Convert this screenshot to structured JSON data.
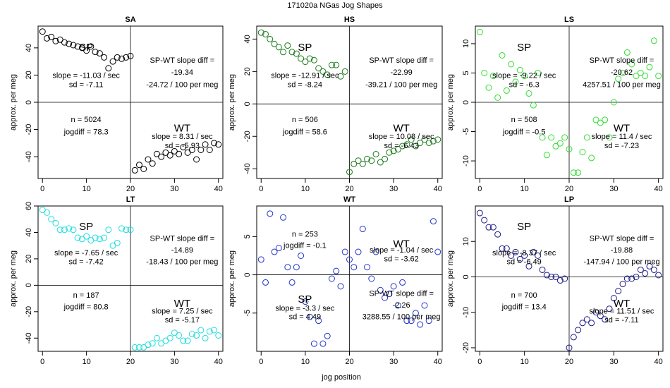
{
  "figure": {
    "title": "171020a   NGas Jog Shapes",
    "xlabel": "jog position",
    "ylabel": "approx. per meg"
  },
  "chart_data": [
    {
      "type": "scatter",
      "title": "SA",
      "color": "#000000",
      "xlim": [
        -1,
        41
      ],
      "ylim": [
        -56,
        56
      ],
      "xticks": [
        0,
        10,
        20,
        30,
        40
      ],
      "yticks": [
        -40,
        -20,
        0,
        20,
        40
      ],
      "split_x": 20,
      "split_y": 0,
      "points": [
        [
          0,
          52
        ],
        [
          1,
          47
        ],
        [
          2,
          48
        ],
        [
          3,
          45
        ],
        [
          4,
          46
        ],
        [
          5,
          44
        ],
        [
          6,
          43
        ],
        [
          7,
          42
        ],
        [
          8,
          41
        ],
        [
          9,
          40
        ],
        [
          10,
          38
        ],
        [
          11,
          41
        ],
        [
          12,
          37
        ],
        [
          13,
          36
        ],
        [
          14,
          33
        ],
        [
          15,
          25
        ],
        [
          16,
          30
        ],
        [
          17,
          33
        ],
        [
          18,
          32
        ],
        [
          19,
          33
        ],
        [
          20,
          34
        ],
        [
          21,
          -50
        ],
        [
          22,
          -46
        ],
        [
          23,
          -49
        ],
        [
          24,
          -42
        ],
        [
          25,
          -45
        ],
        [
          26,
          -38
        ],
        [
          27,
          -40
        ],
        [
          28,
          -37
        ],
        [
          29,
          -39
        ],
        [
          30,
          -36
        ],
        [
          31,
          -38
        ],
        [
          32,
          -33
        ],
        [
          33,
          -37
        ],
        [
          34,
          -35
        ],
        [
          35,
          -42
        ],
        [
          36,
          -35
        ],
        [
          37,
          -31
        ],
        [
          38,
          -35
        ],
        [
          39,
          -30
        ],
        [
          40,
          -31
        ]
      ],
      "annotations": {
        "sp_label": "SP",
        "sp_slope": "slope = -11.03 / sec",
        "sp_sd": "sd = -7.11",
        "wt_label": "WT",
        "wt_slope": "slope = 8.31 / sec",
        "wt_sd": "sd = -5.93",
        "diff_title": "SP-WT slope diff =",
        "diff_value": "-19.34",
        "diff_per": "-24.72 / 100 per meg",
        "n": "n = 5024",
        "jogdiff": "jogdiff = 78.3"
      }
    },
    {
      "type": "scatter",
      "title": "HS",
      "color": "#1a7a1a",
      "xlim": [
        -1,
        41
      ],
      "ylim": [
        -46,
        48
      ],
      "xticks": [
        0,
        10,
        20,
        30,
        40
      ],
      "yticks": [
        -40,
        -20,
        0,
        20,
        40
      ],
      "split_x": 20,
      "split_y": 0,
      "points": [
        [
          0,
          44
        ],
        [
          1,
          43
        ],
        [
          2,
          40
        ],
        [
          3,
          37
        ],
        [
          4,
          35
        ],
        [
          5,
          32
        ],
        [
          6,
          36
        ],
        [
          7,
          32
        ],
        [
          8,
          31
        ],
        [
          9,
          28
        ],
        [
          10,
          26
        ],
        [
          11,
          28
        ],
        [
          12,
          27
        ],
        [
          13,
          22
        ],
        [
          14,
          20
        ],
        [
          15,
          18
        ],
        [
          16,
          24
        ],
        [
          17,
          24
        ],
        [
          18,
          17
        ],
        [
          19,
          20
        ],
        [
          20,
          -42
        ],
        [
          21,
          -37
        ],
        [
          22,
          -35
        ],
        [
          23,
          -37
        ],
        [
          24,
          -34
        ],
        [
          25,
          -35
        ],
        [
          26,
          -31
        ],
        [
          27,
          -36
        ],
        [
          28,
          -34
        ],
        [
          29,
          -30
        ],
        [
          30,
          -29
        ],
        [
          31,
          -28
        ],
        [
          32,
          -26
        ],
        [
          33,
          -25
        ],
        [
          34,
          -22
        ],
        [
          35,
          -26
        ],
        [
          36,
          -24
        ],
        [
          37,
          -22
        ],
        [
          38,
          -24
        ],
        [
          39,
          -23
        ],
        [
          40,
          -22
        ]
      ],
      "annotations": {
        "sp_label": "SP",
        "sp_slope": "slope = -12.91 / sec",
        "sp_sd": "sd = -8.24",
        "wt_label": "WT",
        "wt_slope": "slope = 10.08 / sec",
        "wt_sd": "sd = -6.43",
        "diff_title": "SP-WT slope diff =",
        "diff_value": "-22.99",
        "diff_per": "-39.21 / 100 per meg",
        "n": "n = 506",
        "jogdiff": "jogdiff = 58.6"
      }
    },
    {
      "type": "scatter",
      "title": "LS",
      "color": "#33dd33",
      "xlim": [
        -1,
        41
      ],
      "ylim": [
        -13,
        13
      ],
      "xticks": [
        0,
        10,
        20,
        30,
        40
      ],
      "yticks": [
        -10,
        -5,
        0,
        5,
        10
      ],
      "split_x": 20,
      "split_y": 0,
      "points": [
        [
          0,
          12
        ],
        [
          1,
          5
        ],
        [
          2,
          2.5
        ],
        [
          3,
          4.5
        ],
        [
          4,
          0.8
        ],
        [
          5,
          8
        ],
        [
          6,
          2
        ],
        [
          7,
          6.5
        ],
        [
          8,
          3.5
        ],
        [
          9,
          5.5
        ],
        [
          10,
          4.5
        ],
        [
          11,
          1.5
        ],
        [
          12,
          -0.5
        ],
        [
          13,
          5
        ],
        [
          14,
          -6
        ],
        [
          15,
          -9
        ],
        [
          16,
          -6
        ],
        [
          17,
          -7.5
        ],
        [
          18,
          -7
        ],
        [
          19,
          -6
        ],
        [
          20,
          -8
        ],
        [
          21,
          -12
        ],
        [
          22,
          -12
        ],
        [
          23,
          -8.5
        ],
        [
          24,
          -6
        ],
        [
          25,
          -9.5
        ],
        [
          26,
          -3
        ],
        [
          27,
          -3.5
        ],
        [
          28,
          -3
        ],
        [
          29,
          -6
        ],
        [
          30,
          0
        ],
        [
          31,
          4
        ],
        [
          32,
          5
        ],
        [
          33,
          8.5
        ],
        [
          34,
          6.5
        ],
        [
          35,
          4.5
        ],
        [
          36,
          5
        ],
        [
          37,
          4.5
        ],
        [
          38,
          6
        ],
        [
          39,
          10.5
        ],
        [
          40,
          4.5
        ]
      ],
      "annotations": {
        "sp_label": "SP",
        "sp_slope": "slope = -9.22 / sec",
        "sp_sd": "sd = -6.3",
        "wt_label": "WT",
        "wt_slope": "slope = 11.4 / sec",
        "wt_sd": "sd = -7.23",
        "diff_title": "SP-WT slope diff =",
        "diff_value": "-20.62",
        "diff_per": "4257.51 / 100 per meg",
        "n": "n = 508",
        "jogdiff": "jogdiff = -0.5"
      }
    },
    {
      "type": "scatter",
      "title": "LT",
      "color": "#22dddd",
      "xlim": [
        -1,
        41
      ],
      "ylim": [
        -50,
        60
      ],
      "xticks": [
        0,
        10,
        20,
        30,
        40
      ],
      "yticks": [
        -40,
        -20,
        0,
        20,
        40,
        60
      ],
      "split_x": 20,
      "split_y": 0,
      "points": [
        [
          0,
          57
        ],
        [
          1,
          55
        ],
        [
          2,
          50
        ],
        [
          3,
          47
        ],
        [
          4,
          42
        ],
        [
          5,
          42
        ],
        [
          6,
          43
        ],
        [
          7,
          42
        ],
        [
          8,
          36
        ],
        [
          9,
          35
        ],
        [
          10,
          37
        ],
        [
          11,
          34
        ],
        [
          12,
          36
        ],
        [
          13,
          35
        ],
        [
          14,
          36
        ],
        [
          15,
          42
        ],
        [
          16,
          30
        ],
        [
          17,
          32
        ],
        [
          18,
          43
        ],
        [
          19,
          42
        ],
        [
          20,
          42
        ],
        [
          21,
          -47
        ],
        [
          22,
          -47
        ],
        [
          23,
          -47
        ],
        [
          24,
          -45
        ],
        [
          25,
          -44
        ],
        [
          26,
          -40
        ],
        [
          27,
          -44
        ],
        [
          28,
          -42
        ],
        [
          29,
          -40
        ],
        [
          30,
          -36
        ],
        [
          31,
          -38
        ],
        [
          32,
          -42
        ],
        [
          33,
          -42
        ],
        [
          34,
          -37
        ],
        [
          35,
          -38
        ],
        [
          36,
          -34
        ],
        [
          37,
          -40
        ],
        [
          38,
          -35
        ],
        [
          39,
          -34
        ],
        [
          40,
          -38
        ]
      ],
      "annotations": {
        "sp_label": "SP",
        "sp_slope": "slope = -7.65 / sec",
        "sp_sd": "sd = -7.42",
        "wt_label": "WT",
        "wt_slope": "slope = 7.25 / sec",
        "wt_sd": "sd = -5.17",
        "diff_title": "SP-WT slope diff =",
        "diff_value": "-14.89",
        "diff_per": "-18.43 / 100 per meg",
        "n": "n = 187",
        "jogdiff": "jogdiff = 80.8"
      }
    },
    {
      "type": "scatter",
      "title": "WT",
      "color": "#2233cc",
      "xlim": [
        -1,
        41
      ],
      "ylim": [
        -10,
        9
      ],
      "xticks": [
        0,
        10,
        20,
        30,
        40
      ],
      "yticks": [
        -5,
        0,
        5
      ],
      "split_x": 20,
      "split_y": 0,
      "points": [
        [
          0,
          2
        ],
        [
          1,
          -1
        ],
        [
          2,
          8
        ],
        [
          3,
          3
        ],
        [
          4,
          3.5
        ],
        [
          5,
          7.5
        ],
        [
          6,
          1
        ],
        [
          7,
          -1
        ],
        [
          8,
          1
        ],
        [
          9,
          2.5
        ],
        [
          10,
          -3.5
        ],
        [
          11,
          -5.5
        ],
        [
          12,
          -9
        ],
        [
          13,
          -6
        ],
        [
          14,
          -9
        ],
        [
          15,
          -8
        ],
        [
          16,
          -0.5
        ],
        [
          17,
          0.5
        ],
        [
          18,
          -1.5
        ],
        [
          19,
          3
        ],
        [
          20,
          2
        ],
        [
          21,
          1
        ],
        [
          22,
          3
        ],
        [
          23,
          6
        ],
        [
          24,
          1
        ],
        [
          25,
          -0.5
        ],
        [
          26,
          3
        ],
        [
          27,
          -2
        ],
        [
          28,
          -3
        ],
        [
          29,
          -2.5
        ],
        [
          30,
          -1.5
        ],
        [
          31,
          -4
        ],
        [
          32,
          -1
        ],
        [
          33,
          -6
        ],
        [
          34,
          -6
        ],
        [
          35,
          -5
        ],
        [
          36,
          -6.5
        ],
        [
          37,
          -4
        ],
        [
          38,
          -6
        ],
        [
          39,
          7
        ],
        [
          40,
          3
        ]
      ],
      "annotations": {
        "sp_label": "SP",
        "sp_slope": "slope = -3.3 / sec",
        "sp_sd": "sd = 4.49",
        "wt_label": "WT",
        "wt_slope": "slope = -1.04 / sec",
        "wt_sd": "sd = -3.62",
        "diff_title": "SP-WT slope diff =",
        "diff_value": "-2.26",
        "diff_per": "3288.55 / 100 per meg",
        "n": "n = 253",
        "jogdiff": "jogdiff = -0.1"
      }
    },
    {
      "type": "scatter",
      "title": "LP",
      "color": "#1a1a8a",
      "xlim": [
        -1,
        41
      ],
      "ylim": [
        -21,
        20
      ],
      "xticks": [
        0,
        10,
        20,
        30,
        40
      ],
      "yticks": [
        -20,
        -10,
        0,
        10
      ],
      "split_x": 20,
      "split_y": 0,
      "points": [
        [
          0,
          18
        ],
        [
          1,
          16
        ],
        [
          2,
          14
        ],
        [
          3,
          14
        ],
        [
          4,
          12
        ],
        [
          5,
          8
        ],
        [
          6,
          8
        ],
        [
          7,
          6
        ],
        [
          8,
          7
        ],
        [
          9,
          5
        ],
        [
          10,
          6
        ],
        [
          11,
          3
        ],
        [
          12,
          7
        ],
        [
          13,
          6
        ],
        [
          14,
          2
        ],
        [
          15,
          0.5
        ],
        [
          16,
          0
        ],
        [
          17,
          0
        ],
        [
          18,
          -1
        ],
        [
          19,
          -0.5
        ],
        [
          20,
          -20
        ],
        [
          21,
          -17
        ],
        [
          22,
          -15
        ],
        [
          23,
          -13
        ],
        [
          24,
          -12
        ],
        [
          25,
          -13
        ],
        [
          26,
          -10
        ],
        [
          27,
          -11
        ],
        [
          28,
          -12
        ],
        [
          29,
          -9
        ],
        [
          30,
          -6
        ],
        [
          31,
          -4
        ],
        [
          32,
          -2
        ],
        [
          33,
          -0.5
        ],
        [
          34,
          -0.5
        ],
        [
          35,
          0
        ],
        [
          36,
          2
        ],
        [
          37,
          1
        ],
        [
          38,
          3
        ],
        [
          39,
          2
        ],
        [
          40,
          0.5
        ]
      ],
      "annotations": {
        "sp_label": "SP",
        "sp_slope": "slope = -8.37 / sec",
        "sp_sd": "sd = -6.49",
        "wt_label": "WT",
        "wt_slope": "slope = 11.51 / sec",
        "wt_sd": "sd = -7.11",
        "diff_title": "SP-WT slope diff =",
        "diff_value": "-19.88",
        "diff_per": "-147.94 / 100 per meg",
        "n": "n = 700",
        "jogdiff": "jogdiff = 13.4"
      }
    }
  ]
}
